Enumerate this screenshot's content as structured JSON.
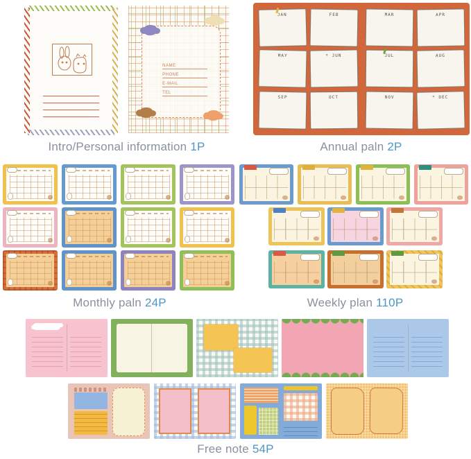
{
  "colors": {
    "caption_text": "#8a919c",
    "caption_accent": "#4d96c6",
    "annual_bg": "#d2673c"
  },
  "captions": {
    "intro": {
      "text": "Intro/Personal information",
      "pages": "1P"
    },
    "annual": {
      "text": "Annual paln",
      "pages": "2P"
    },
    "monthly": {
      "text": "Monthly paln",
      "pages": "24P"
    },
    "weekly": {
      "text": "Weekly plan",
      "pages": "110P"
    },
    "freenote": {
      "text": "Free note",
      "pages": "54P"
    }
  },
  "intro": {
    "fields": [
      "NAME",
      "PHONE",
      "E-MAIL",
      "TEL"
    ]
  },
  "annual": {
    "months": [
      {
        "label": "JAN",
        "pin": "#e7b23a"
      },
      {
        "label": "FEB"
      },
      {
        "label": "MAR"
      },
      {
        "label": "APR"
      },
      {
        "label": "MAY"
      },
      {
        "label": "JUN",
        "star": true
      },
      {
        "label": "JUL",
        "pin": "#6aa83f"
      },
      {
        "label": "AUG"
      },
      {
        "label": "SEP"
      },
      {
        "label": "OCT"
      },
      {
        "label": "NOV"
      },
      {
        "label": "DEC",
        "star": true
      }
    ]
  },
  "monthly": {
    "cards": [
      {
        "frame": "#f1c14d",
        "inner": "#fefdf9"
      },
      {
        "frame": "#659ad1",
        "inner": "#fefdf9"
      },
      {
        "frame": "#a3c45c",
        "inner": "#fefdf9"
      },
      {
        "frame": "#9d95c8",
        "inner": "#fefdf9"
      },
      {
        "frame": "#eeb3c0",
        "inner": "#fefdf9"
      },
      {
        "frame": "#5f94cb",
        "inner": "#f6cf97"
      },
      {
        "frame": "#a3c45c",
        "inner": "#fefdf9"
      },
      {
        "frame": "#f1c14d",
        "inner": "#fefdf9"
      },
      {
        "frame": "#d8703a",
        "inner": "#f6cf97",
        "plaid": true
      },
      {
        "frame": "#5f94cb",
        "inner": "#f6cf97"
      },
      {
        "frame": "#8d84bf",
        "inner": "#f6cf97"
      },
      {
        "frame": "#8fbf58",
        "inner": "#f6cf97"
      }
    ]
  },
  "weekly": {
    "rows": [
      [
        {
          "frame": "#6b9ace",
          "inner": "#faf4e0",
          "tab": "#d95a43"
        },
        {
          "frame": "#e9bd55",
          "inner": "#faf4e0",
          "tab": "#dfae3c"
        },
        {
          "frame": "#8cbf55",
          "inner": "#faf4e0",
          "tab": "#e3b33f"
        },
        {
          "frame": "#efa29c",
          "inner": "#faf4e0",
          "tab": "#2f8d7d"
        }
      ],
      [
        {
          "frame": "#edc45a",
          "inner": "#faf4e0",
          "tab": "#4f7fc4"
        },
        {
          "frame": "#6b9ace",
          "inner": "#f6d5e0",
          "tab": "#e3b33f"
        },
        {
          "frame": "#f0a8a4",
          "inner": "#faf4e0",
          "tab": "#c4763a"
        }
      ],
      [
        {
          "frame": "#5cb3a4",
          "inner": "#f6d0a0",
          "tab": "#d95a43"
        },
        {
          "frame": "#c86f2e",
          "inner": "#f3cf9d",
          "tab": "#5d9b40"
        },
        {
          "frame": "#f0c55e",
          "inner": "#faf4e0",
          "tab": "#5d9b40",
          "patterned": true
        }
      ]
    ]
  },
  "freenote": {
    "row1": [
      {
        "kind": "lined",
        "bg": "#f7c3ce",
        "line": "#eb9fb4",
        "cloud": true
      },
      {
        "kind": "book",
        "frame": "#83b05c",
        "inner": "#f8f4e4"
      },
      {
        "kind": "gingham_squares",
        "check": "#a3c3c0",
        "square": "#f5c554"
      },
      {
        "kind": "wavy",
        "bg": "#f2a6b4",
        "band": "#74ab52"
      },
      {
        "kind": "lined",
        "bg": "#abc8e9",
        "line": "#85a9d6",
        "cloud": false
      }
    ],
    "row2": [
      {
        "kind": "collage_tan",
        "bg": "#e9c5b8",
        "blue": "#92b5e2",
        "yellow": "#f2bb3f",
        "panel": "#f6f1d3",
        "stitch": "#e2954f"
      },
      {
        "kind": "gingham_rects",
        "check": "#9fb9de",
        "rect": "#f5bfca",
        "edge": "#e08a50"
      },
      {
        "kind": "collage_blue",
        "bg": "#83abd9",
        "stripes": "#f2a261",
        "bar": "#eec32c",
        "yellow": "#ecc62a",
        "green": "#c3d17f",
        "gingham": "#f0a984",
        "line": "#5f8cc2"
      },
      {
        "kind": "orange_pages",
        "bg": "#f4c472",
        "page": "#f6cd85",
        "edge": "#d0793c"
      }
    ]
  }
}
